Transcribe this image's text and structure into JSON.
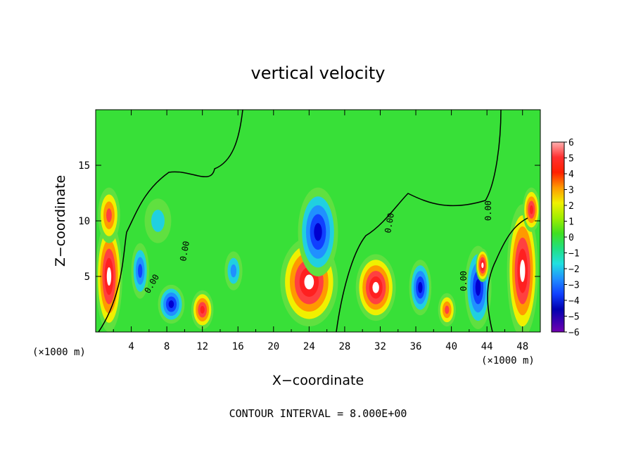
{
  "chart_data": {
    "type": "heatmap",
    "title": "vertical velocity",
    "xlabel": "X−coordinate",
    "ylabel": "Z−coordinate",
    "x_unit": "(×1000 m)",
    "z_unit": "(×1000 m)",
    "footer": "CONTOUR INTERVAL = 8.000E+00",
    "contour_label": "0.00",
    "xlim": [
      0,
      50
    ],
    "ylim": [
      0,
      20
    ],
    "x_ticks": [
      "4",
      "8",
      "12",
      "16",
      "20",
      "24",
      "28",
      "32",
      "36",
      "40",
      "44",
      "48"
    ],
    "y_ticks": [
      "5",
      "10",
      "15"
    ],
    "colorbar": {
      "ticks": [
        "6",
        "5",
        "4",
        "3",
        "2",
        "1",
        "0",
        "−1",
        "−2",
        "−3",
        "−4",
        "−5",
        "−6"
      ],
      "min": -6,
      "max": 6
    },
    "cells": [
      {
        "x": 1.5,
        "z": 5.0,
        "w": 3.0,
        "h": 10.0,
        "v": 6
      },
      {
        "x": 1.5,
        "z": 10.5,
        "w": 2.5,
        "h": 5.0,
        "v": 4
      },
      {
        "x": 5.0,
        "z": 5.5,
        "w": 2.0,
        "h": 5.0,
        "v": -4
      },
      {
        "x": 7.0,
        "z": 10.0,
        "w": 3.0,
        "h": 4.0,
        "v": -2
      },
      {
        "x": 8.5,
        "z": 2.5,
        "w": 3.0,
        "h": 3.5,
        "v": -5
      },
      {
        "x": 12.0,
        "z": 2.0,
        "w": 2.5,
        "h": 3.5,
        "v": 5
      },
      {
        "x": 15.5,
        "z": 5.5,
        "w": 2.0,
        "h": 3.5,
        "v": -3
      },
      {
        "x": 24.0,
        "z": 4.5,
        "w": 6.5,
        "h": 8.0,
        "v": 6
      },
      {
        "x": 25.0,
        "z": 9.0,
        "w": 4.5,
        "h": 8.0,
        "v": -5
      },
      {
        "x": 31.5,
        "z": 4.0,
        "w": 4.5,
        "h": 6.0,
        "v": 6
      },
      {
        "x": 36.5,
        "z": 4.0,
        "w": 2.5,
        "h": 5.0,
        "v": -5
      },
      {
        "x": 39.5,
        "z": 2.0,
        "w": 2.0,
        "h": 3.0,
        "v": 4
      },
      {
        "x": 43.0,
        "z": 4.0,
        "w": 3.0,
        "h": 7.5,
        "v": -5
      },
      {
        "x": 43.5,
        "z": 6.0,
        "w": 1.5,
        "h": 3.0,
        "v": 6
      },
      {
        "x": 48.0,
        "z": 5.5,
        "w": 3.5,
        "h": 12.0,
        "v": 6
      },
      {
        "x": 49.0,
        "z": 11.0,
        "w": 2.0,
        "h": 4.0,
        "v": 5
      }
    ]
  }
}
